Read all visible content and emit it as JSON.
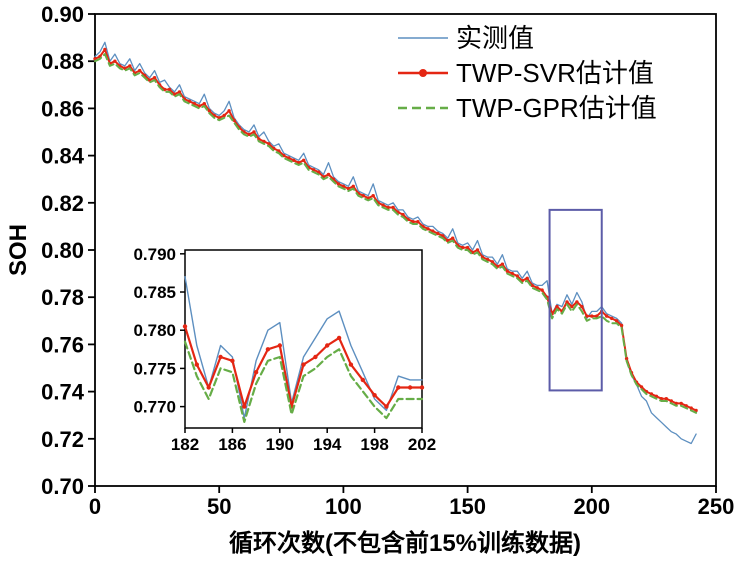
{
  "chart_data": {
    "type": "line",
    "title": "",
    "xlabel": "循环次数(不包含前15%训练数据)",
    "ylabel": "SOH",
    "xlim": [
      0,
      250
    ],
    "ylim": [
      0.7,
      0.9
    ],
    "xticks": [
      0,
      50,
      100,
      150,
      200,
      250
    ],
    "yticks": [
      0.7,
      0.72,
      0.74,
      0.76,
      0.78,
      0.8,
      0.82,
      0.84,
      0.86,
      0.88,
      0.9
    ],
    "grid": false,
    "legend_position": "top-right",
    "x": [
      0,
      2,
      4,
      6,
      8,
      10,
      12,
      14,
      16,
      18,
      20,
      22,
      24,
      26,
      28,
      30,
      32,
      34,
      36,
      38,
      40,
      42,
      44,
      46,
      48,
      50,
      52,
      54,
      56,
      58,
      60,
      62,
      64,
      66,
      68,
      70,
      72,
      74,
      76,
      78,
      80,
      82,
      84,
      86,
      88,
      90,
      92,
      94,
      96,
      98,
      100,
      102,
      104,
      106,
      108,
      110,
      112,
      114,
      116,
      118,
      120,
      122,
      124,
      126,
      128,
      130,
      132,
      134,
      136,
      138,
      140,
      142,
      144,
      146,
      148,
      150,
      152,
      154,
      156,
      158,
      160,
      162,
      164,
      166,
      168,
      170,
      172,
      174,
      176,
      178,
      180,
      182,
      184,
      186,
      188,
      190,
      192,
      194,
      196,
      198,
      200,
      202,
      204,
      206,
      208,
      210,
      212,
      214,
      216,
      218,
      220,
      222,
      224,
      226,
      228,
      230,
      232,
      234,
      236,
      238,
      240,
      242
    ],
    "series": [
      {
        "name": "实测值",
        "color": "#5d8fc0",
        "line": "solid",
        "width": 1.3,
        "markers": false,
        "values": [
          0.882,
          0.884,
          0.888,
          0.88,
          0.883,
          0.879,
          0.878,
          0.881,
          0.876,
          0.879,
          0.875,
          0.873,
          0.876,
          0.871,
          0.872,
          0.869,
          0.867,
          0.87,
          0.865,
          0.864,
          0.863,
          0.862,
          0.866,
          0.86,
          0.858,
          0.857,
          0.859,
          0.863,
          0.856,
          0.853,
          0.851,
          0.85,
          0.853,
          0.848,
          0.85,
          0.846,
          0.844,
          0.845,
          0.841,
          0.84,
          0.839,
          0.838,
          0.841,
          0.836,
          0.835,
          0.834,
          0.832,
          0.837,
          0.831,
          0.829,
          0.828,
          0.827,
          0.831,
          0.825,
          0.824,
          0.823,
          0.828,
          0.821,
          0.82,
          0.819,
          0.82,
          0.817,
          0.817,
          0.814,
          0.813,
          0.814,
          0.811,
          0.81,
          0.81,
          0.808,
          0.807,
          0.805,
          0.809,
          0.803,
          0.802,
          0.803,
          0.8,
          0.804,
          0.798,
          0.797,
          0.797,
          0.794,
          0.798,
          0.792,
          0.791,
          0.791,
          0.788,
          0.791,
          0.786,
          0.785,
          0.785,
          0.787,
          0.773,
          0.777,
          0.776,
          0.781,
          0.777,
          0.782,
          0.778,
          0.771,
          0.774,
          0.774,
          0.776,
          0.773,
          0.772,
          0.771,
          0.769,
          0.753,
          0.747,
          0.743,
          0.738,
          0.736,
          0.731,
          0.729,
          0.727,
          0.725,
          0.723,
          0.722,
          0.72,
          0.719,
          0.718,
          0.722
        ]
      },
      {
        "name": "TWP-SVR估计值",
        "color": "#e42613",
        "line": "solid",
        "width": 2.0,
        "markers": true,
        "values": [
          0.881,
          0.882,
          0.885,
          0.879,
          0.88,
          0.878,
          0.877,
          0.878,
          0.875,
          0.876,
          0.874,
          0.872,
          0.873,
          0.87,
          0.868,
          0.868,
          0.866,
          0.867,
          0.864,
          0.863,
          0.862,
          0.861,
          0.862,
          0.859,
          0.857,
          0.856,
          0.857,
          0.859,
          0.855,
          0.852,
          0.85,
          0.849,
          0.85,
          0.847,
          0.846,
          0.845,
          0.843,
          0.842,
          0.84,
          0.839,
          0.838,
          0.837,
          0.838,
          0.835,
          0.834,
          0.833,
          0.831,
          0.832,
          0.83,
          0.828,
          0.827,
          0.826,
          0.827,
          0.824,
          0.823,
          0.822,
          0.823,
          0.82,
          0.819,
          0.818,
          0.818,
          0.816,
          0.815,
          0.813,
          0.812,
          0.812,
          0.81,
          0.809,
          0.808,
          0.807,
          0.806,
          0.804,
          0.805,
          0.802,
          0.801,
          0.801,
          0.799,
          0.8,
          0.797,
          0.796,
          0.795,
          0.793,
          0.794,
          0.791,
          0.79,
          0.789,
          0.787,
          0.788,
          0.785,
          0.784,
          0.783,
          0.78,
          0.773,
          0.776,
          0.774,
          0.778,
          0.776,
          0.778,
          0.776,
          0.772,
          0.772,
          0.772,
          0.774,
          0.772,
          0.771,
          0.77,
          0.768,
          0.754,
          0.748,
          0.744,
          0.742,
          0.74,
          0.739,
          0.738,
          0.737,
          0.737,
          0.736,
          0.735,
          0.735,
          0.734,
          0.733,
          0.732
        ]
      },
      {
        "name": "TWP-GPR估计值",
        "color": "#66ad47",
        "line": "dashed",
        "width": 2.0,
        "markers": false,
        "values": [
          0.88,
          0.881,
          0.883,
          0.878,
          0.879,
          0.877,
          0.876,
          0.877,
          0.874,
          0.875,
          0.873,
          0.871,
          0.872,
          0.869,
          0.867,
          0.867,
          0.865,
          0.866,
          0.863,
          0.862,
          0.861,
          0.86,
          0.861,
          0.858,
          0.856,
          0.855,
          0.856,
          0.857,
          0.854,
          0.851,
          0.849,
          0.848,
          0.849,
          0.846,
          0.845,
          0.844,
          0.842,
          0.841,
          0.839,
          0.838,
          0.837,
          0.836,
          0.837,
          0.834,
          0.833,
          0.832,
          0.83,
          0.831,
          0.829,
          0.827,
          0.826,
          0.825,
          0.826,
          0.823,
          0.822,
          0.821,
          0.822,
          0.819,
          0.818,
          0.817,
          0.817,
          0.815,
          0.814,
          0.812,
          0.811,
          0.811,
          0.809,
          0.808,
          0.807,
          0.806,
          0.805,
          0.803,
          0.804,
          0.801,
          0.8,
          0.8,
          0.798,
          0.799,
          0.796,
          0.795,
          0.794,
          0.792,
          0.793,
          0.79,
          0.789,
          0.788,
          0.786,
          0.787,
          0.784,
          0.783,
          0.782,
          0.779,
          0.771,
          0.775,
          0.773,
          0.777,
          0.774,
          0.777,
          0.774,
          0.77,
          0.771,
          0.771,
          0.772,
          0.77,
          0.769,
          0.769,
          0.767,
          0.753,
          0.747,
          0.743,
          0.741,
          0.739,
          0.738,
          0.737,
          0.736,
          0.736,
          0.735,
          0.734,
          0.734,
          0.733,
          0.732,
          0.731
        ]
      }
    ],
    "annotation_box": {
      "x0": 183,
      "x1": 204,
      "y0": 0.7405,
      "y1": 0.817,
      "color": "#5c5ca8"
    },
    "inset": {
      "xlim": [
        182,
        202
      ],
      "ylim": [
        0.7672,
        0.7905
      ],
      "xticks": [
        182,
        186,
        190,
        194,
        198,
        202
      ],
      "yticks": [
        0.77,
        0.775,
        0.78,
        0.785,
        0.79
      ],
      "x": [
        182,
        183,
        184,
        185,
        186,
        187,
        188,
        189,
        190,
        191,
        192,
        193,
        194,
        195,
        196,
        197,
        198,
        199,
        200,
        201,
        202
      ],
      "series": [
        {
          "name": "实测值",
          "color": "#5d8fc0",
          "line": "solid",
          "width": 1.4,
          "markers": false,
          "values": [
            0.787,
            0.778,
            0.7725,
            0.778,
            0.7765,
            0.7685,
            0.776,
            0.78,
            0.781,
            0.7705,
            0.7765,
            0.779,
            0.7815,
            0.7825,
            0.778,
            0.7745,
            0.771,
            0.7695,
            0.774,
            0.7735,
            0.7735
          ]
        },
        {
          "name": "TWP-SVR估计值",
          "color": "#e42613",
          "line": "solid",
          "width": 2.2,
          "markers": true,
          "values": [
            0.7805,
            0.7755,
            0.7725,
            0.7765,
            0.776,
            0.77,
            0.7745,
            0.7775,
            0.778,
            0.77,
            0.7755,
            0.7765,
            0.778,
            0.779,
            0.7755,
            0.7735,
            0.7715,
            0.77,
            0.7725,
            0.7725,
            0.7725
          ]
        },
        {
          "name": "TWP-GPR估计值",
          "color": "#66ad47",
          "line": "dashed",
          "width": 2.2,
          "markers": false,
          "values": [
            0.7785,
            0.774,
            0.771,
            0.775,
            0.7745,
            0.768,
            0.773,
            0.776,
            0.7765,
            0.769,
            0.774,
            0.775,
            0.7765,
            0.7775,
            0.774,
            0.772,
            0.77,
            0.7685,
            0.771,
            0.771,
            0.771
          ]
        }
      ]
    }
  }
}
